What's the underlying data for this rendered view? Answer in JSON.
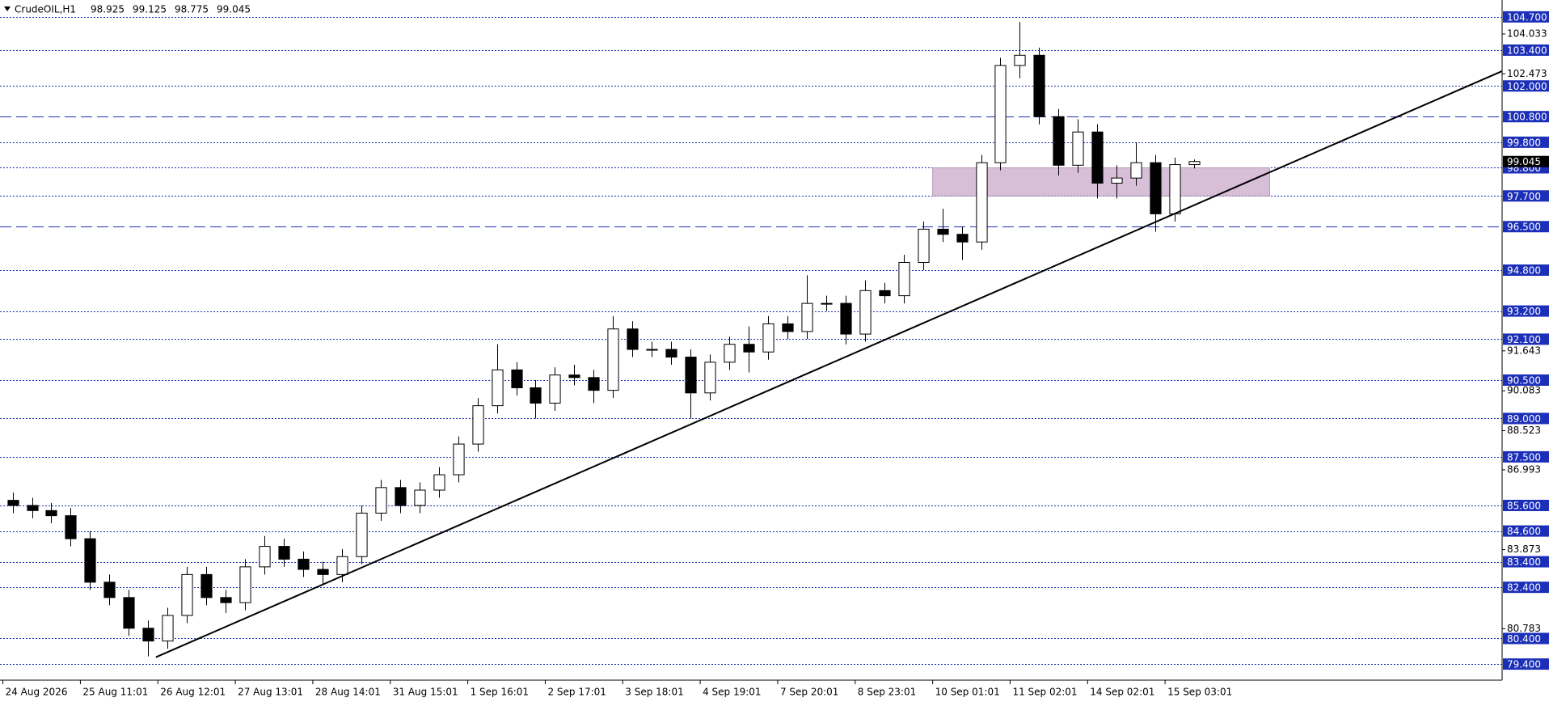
{
  "chart_data": {
    "type": "candlestick",
    "symbol": "CrudeOIL,H1",
    "candles": [
      [
        85.8,
        86.1,
        85.3,
        85.6
      ],
      [
        85.6,
        85.9,
        85.1,
        85.4
      ],
      [
        85.4,
        85.7,
        84.9,
        85.2
      ],
      [
        85.2,
        85.5,
        84.0,
        84.3
      ],
      [
        84.3,
        84.6,
        82.3,
        82.6
      ],
      [
        82.6,
        82.9,
        81.7,
        82.0
      ],
      [
        82.0,
        82.3,
        80.5,
        80.8
      ],
      [
        80.8,
        81.1,
        79.7,
        80.3
      ],
      [
        80.3,
        81.6,
        80.0,
        81.3
      ],
      [
        81.3,
        83.2,
        81.0,
        82.9
      ],
      [
        82.9,
        83.2,
        81.7,
        82.0
      ],
      [
        82.0,
        82.3,
        81.4,
        81.8
      ],
      [
        81.8,
        83.5,
        81.5,
        83.2
      ],
      [
        83.2,
        84.4,
        82.9,
        84.0
      ],
      [
        84.0,
        84.3,
        83.2,
        83.5
      ],
      [
        83.5,
        83.8,
        82.8,
        83.1
      ],
      [
        83.1,
        83.4,
        82.5,
        82.9
      ],
      [
        82.9,
        83.9,
        82.6,
        83.6
      ],
      [
        83.6,
        85.6,
        83.3,
        85.3
      ],
      [
        85.3,
        86.6,
        85.0,
        86.3
      ],
      [
        86.3,
        86.6,
        85.3,
        85.6
      ],
      [
        85.6,
        86.5,
        85.3,
        86.2
      ],
      [
        86.2,
        87.1,
        85.9,
        86.8
      ],
      [
        86.8,
        88.3,
        86.5,
        88.0
      ],
      [
        88.0,
        89.8,
        87.7,
        89.5
      ],
      [
        89.5,
        91.9,
        89.2,
        90.9
      ],
      [
        90.9,
        91.2,
        89.9,
        90.2
      ],
      [
        90.2,
        90.5,
        89.0,
        89.6
      ],
      [
        89.6,
        91.0,
        89.3,
        90.7
      ],
      [
        90.7,
        91.1,
        90.3,
        90.6
      ],
      [
        90.6,
        90.9,
        89.6,
        90.1
      ],
      [
        90.1,
        93.0,
        89.8,
        92.5
      ],
      [
        92.5,
        92.8,
        91.4,
        91.7
      ],
      [
        91.7,
        92.0,
        91.4,
        91.7
      ],
      [
        91.7,
        92.0,
        91.1,
        91.4
      ],
      [
        91.4,
        91.7,
        89.0,
        90.0
      ],
      [
        90.0,
        91.5,
        89.7,
        91.2
      ],
      [
        91.2,
        92.2,
        90.9,
        91.9
      ],
      [
        91.9,
        92.6,
        90.8,
        91.6
      ],
      [
        91.6,
        93.0,
        91.3,
        92.7
      ],
      [
        92.7,
        93.0,
        92.1,
        92.4
      ],
      [
        92.4,
        94.6,
        92.1,
        93.5
      ],
      [
        93.5,
        93.8,
        93.2,
        93.5
      ],
      [
        93.5,
        93.8,
        91.9,
        92.3
      ],
      [
        92.3,
        94.4,
        92.0,
        94.0
      ],
      [
        94.0,
        94.3,
        93.5,
        93.8
      ],
      [
        93.8,
        95.4,
        93.5,
        95.1
      ],
      [
        95.1,
        96.7,
        94.8,
        96.4
      ],
      [
        96.4,
        97.2,
        95.9,
        96.2
      ],
      [
        96.2,
        96.5,
        95.2,
        95.9
      ],
      [
        95.9,
        99.3,
        95.6,
        99.0
      ],
      [
        99.0,
        103.1,
        98.7,
        102.8
      ],
      [
        102.8,
        104.5,
        102.3,
        103.2
      ],
      [
        103.2,
        103.5,
        100.5,
        100.8
      ],
      [
        100.8,
        101.1,
        98.5,
        98.9
      ],
      [
        98.9,
        100.7,
        98.6,
        100.2
      ],
      [
        100.2,
        100.5,
        97.6,
        98.2
      ],
      [
        98.2,
        98.9,
        97.6,
        98.4
      ],
      [
        98.4,
        99.8,
        98.1,
        99.0
      ],
      [
        99.0,
        99.3,
        96.3,
        97.0
      ],
      [
        97.0,
        99.2,
        96.7,
        98.925
      ],
      [
        98.925,
        99.125,
        98.775,
        99.045
      ]
    ],
    "xlim": [
      -0.65,
      76.9
    ],
    "ylim": [
      78.77,
      105.36
    ],
    "xticks": [
      {
        "value": -0.5,
        "label": "24 Aug 2026"
      },
      {
        "value": 3.5,
        "label": "25 Aug 11:01"
      },
      {
        "value": 7.5,
        "label": "26 Aug 12:01"
      },
      {
        "value": 11.5,
        "label": "27 Aug 13:01"
      },
      {
        "value": 15.5,
        "label": "28 Aug 14:01"
      },
      {
        "value": 19.5,
        "label": "31 Aug 15:01"
      },
      {
        "value": 23.5,
        "label": "1 Sep 16:01"
      },
      {
        "value": 27.5,
        "label": "2 Sep 17:01"
      },
      {
        "value": 31.5,
        "label": "3 Sep 18:01"
      },
      {
        "value": 35.5,
        "label": "4 Sep 19:01"
      },
      {
        "value": 39.5,
        "label": "7 Sep 20:01"
      },
      {
        "value": 43.5,
        "label": "8 Sep 23:01"
      },
      {
        "value": 47.5,
        "label": "10 Sep 01:01"
      },
      {
        "value": 51.5,
        "label": "11 Sep 02:01"
      },
      {
        "value": 55.5,
        "label": "14 Sep 02:01"
      },
      {
        "value": 59.5,
        "label": "15 Sep 03:01"
      }
    ],
    "yticks": [
      104.033,
      102.473,
      91.643,
      90.083,
      88.523,
      86.993,
      83.873,
      80.783
    ],
    "levels": [
      {
        "value": 104.7,
        "label": "104.700",
        "style": "dot"
      },
      {
        "value": 103.4,
        "label": "103.400",
        "style": "dot"
      },
      {
        "value": 102.0,
        "label": "102.000",
        "style": "dot"
      },
      {
        "value": 100.8,
        "label": "100.800",
        "style": "dash"
      },
      {
        "value": 99.8,
        "label": "99.800",
        "style": "dot"
      },
      {
        "value": 98.8,
        "label": "98.800",
        "style": "dot"
      },
      {
        "value": 97.7,
        "label": "97.700",
        "style": "dot"
      },
      {
        "value": 96.5,
        "label": "96.500",
        "style": "dash"
      },
      {
        "value": 94.8,
        "label": "94.800",
        "style": "dot"
      },
      {
        "value": 93.2,
        "label": "93.200",
        "style": "dot"
      },
      {
        "value": 92.1,
        "label": "92.100",
        "style": "dot"
      },
      {
        "value": 90.5,
        "label": "90.500",
        "style": "dot"
      },
      {
        "value": 89.0,
        "label": "89.000",
        "style": "dot"
      },
      {
        "value": 87.5,
        "label": "87.500",
        "style": "dot"
      },
      {
        "value": 85.6,
        "label": "85.600",
        "style": "dot"
      },
      {
        "value": 84.6,
        "label": "84.600",
        "style": "dot"
      },
      {
        "value": 83.4,
        "label": "83.400",
        "style": "dot"
      },
      {
        "value": 82.4,
        "label": "82.400",
        "style": "dot"
      },
      {
        "value": 80.4,
        "label": "80.400",
        "style": "dot"
      },
      {
        "value": 79.4,
        "label": "79.400",
        "style": "dot"
      }
    ],
    "level_color": "#1c2fb8",
    "zone": {
      "x": [
        47.5,
        64.9
      ],
      "y": [
        97.7,
        98.8
      ],
      "color": "#d8bfd8"
    },
    "trendline": {
      "x": [
        7.4,
        76.9
      ],
      "y": [
        79.67,
        102.58
      ],
      "color": "#000000"
    }
  }
}
